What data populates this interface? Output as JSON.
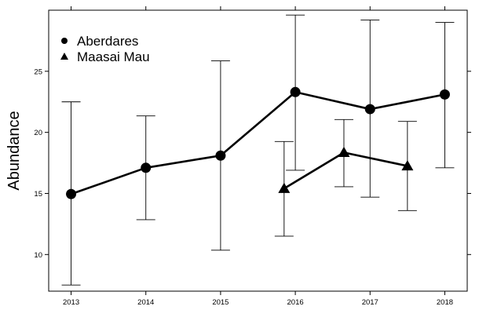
{
  "chart_data": {
    "type": "line",
    "title": "",
    "xlabel": "",
    "ylabel": "Abundance",
    "xlim": [
      2012.7,
      2018.3
    ],
    "ylim": [
      7,
      30
    ],
    "xticks": [
      2013,
      2014,
      2015,
      2016,
      2017,
      2018
    ],
    "yticks": [
      10,
      15,
      20,
      25
    ],
    "legend_position": "top-left",
    "grid": false,
    "series": [
      {
        "name": "Aberdares",
        "marker": "circle",
        "color": "#000000",
        "points": [
          {
            "x": 2013,
            "y": 14.95,
            "lower": 7.5,
            "upper": 22.5
          },
          {
            "x": 2014,
            "y": 17.1,
            "lower": 12.85,
            "upper": 21.35
          },
          {
            "x": 2015,
            "y": 18.1,
            "lower": 10.35,
            "upper": 25.85
          },
          {
            "x": 2016,
            "y": 23.3,
            "lower": 16.9,
            "upper": 29.6
          },
          {
            "x": 2017,
            "y": 21.9,
            "lower": 14.7,
            "upper": 29.2
          },
          {
            "x": 2018,
            "y": 23.1,
            "lower": 17.1,
            "upper": 29.0
          }
        ]
      },
      {
        "name": "Maasai Mau",
        "marker": "triangle",
        "color": "#000000",
        "points": [
          {
            "x": 2015.85,
            "y": 15.4,
            "lower": 11.5,
            "upper": 19.25
          },
          {
            "x": 2016.65,
            "y": 18.35,
            "lower": 15.55,
            "upper": 21.05
          },
          {
            "x": 2017.5,
            "y": 17.25,
            "lower": 13.6,
            "upper": 20.9
          }
        ]
      }
    ]
  }
}
